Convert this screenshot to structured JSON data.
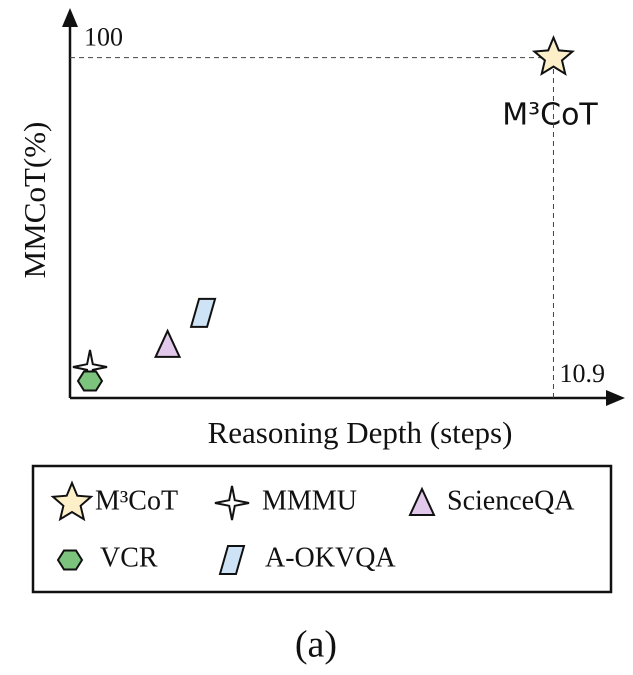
{
  "chart_data": {
    "type": "scatter",
    "x_label": "Reasoning Depth (steps)",
    "y_label": "MMCoT(%)",
    "annotation": "M³CoT",
    "caption": "(a)",
    "xlim": [
      0,
      12.4
    ],
    "ylim": [
      0,
      114
    ],
    "xticks": [
      10.9
    ],
    "yticks": [
      100
    ],
    "series": [
      {
        "name": "M³CoT",
        "color": "#fdf0c8",
        "marker": "star",
        "x": [
          10.9
        ],
        "values": [
          100
        ]
      },
      {
        "name": "MMMU",
        "color": "#ffffff",
        "marker": "star4",
        "x": [
          0.45
        ],
        "values": [
          9.1
        ]
      },
      {
        "name": "ScienceQA",
        "color": "#e2c8ea",
        "marker": "triangle",
        "x": [
          2.2
        ],
        "values": [
          15.6
        ]
      },
      {
        "name": "VCR",
        "color": "#7cc47e",
        "marker": "hexagon",
        "x": [
          0.45
        ],
        "values": [
          5
        ]
      },
      {
        "name": "A-OKVQA",
        "color": "#cfe3f6",
        "marker": "parallelogram",
        "x": [
          3.0
        ],
        "values": [
          25
        ]
      }
    ]
  }
}
